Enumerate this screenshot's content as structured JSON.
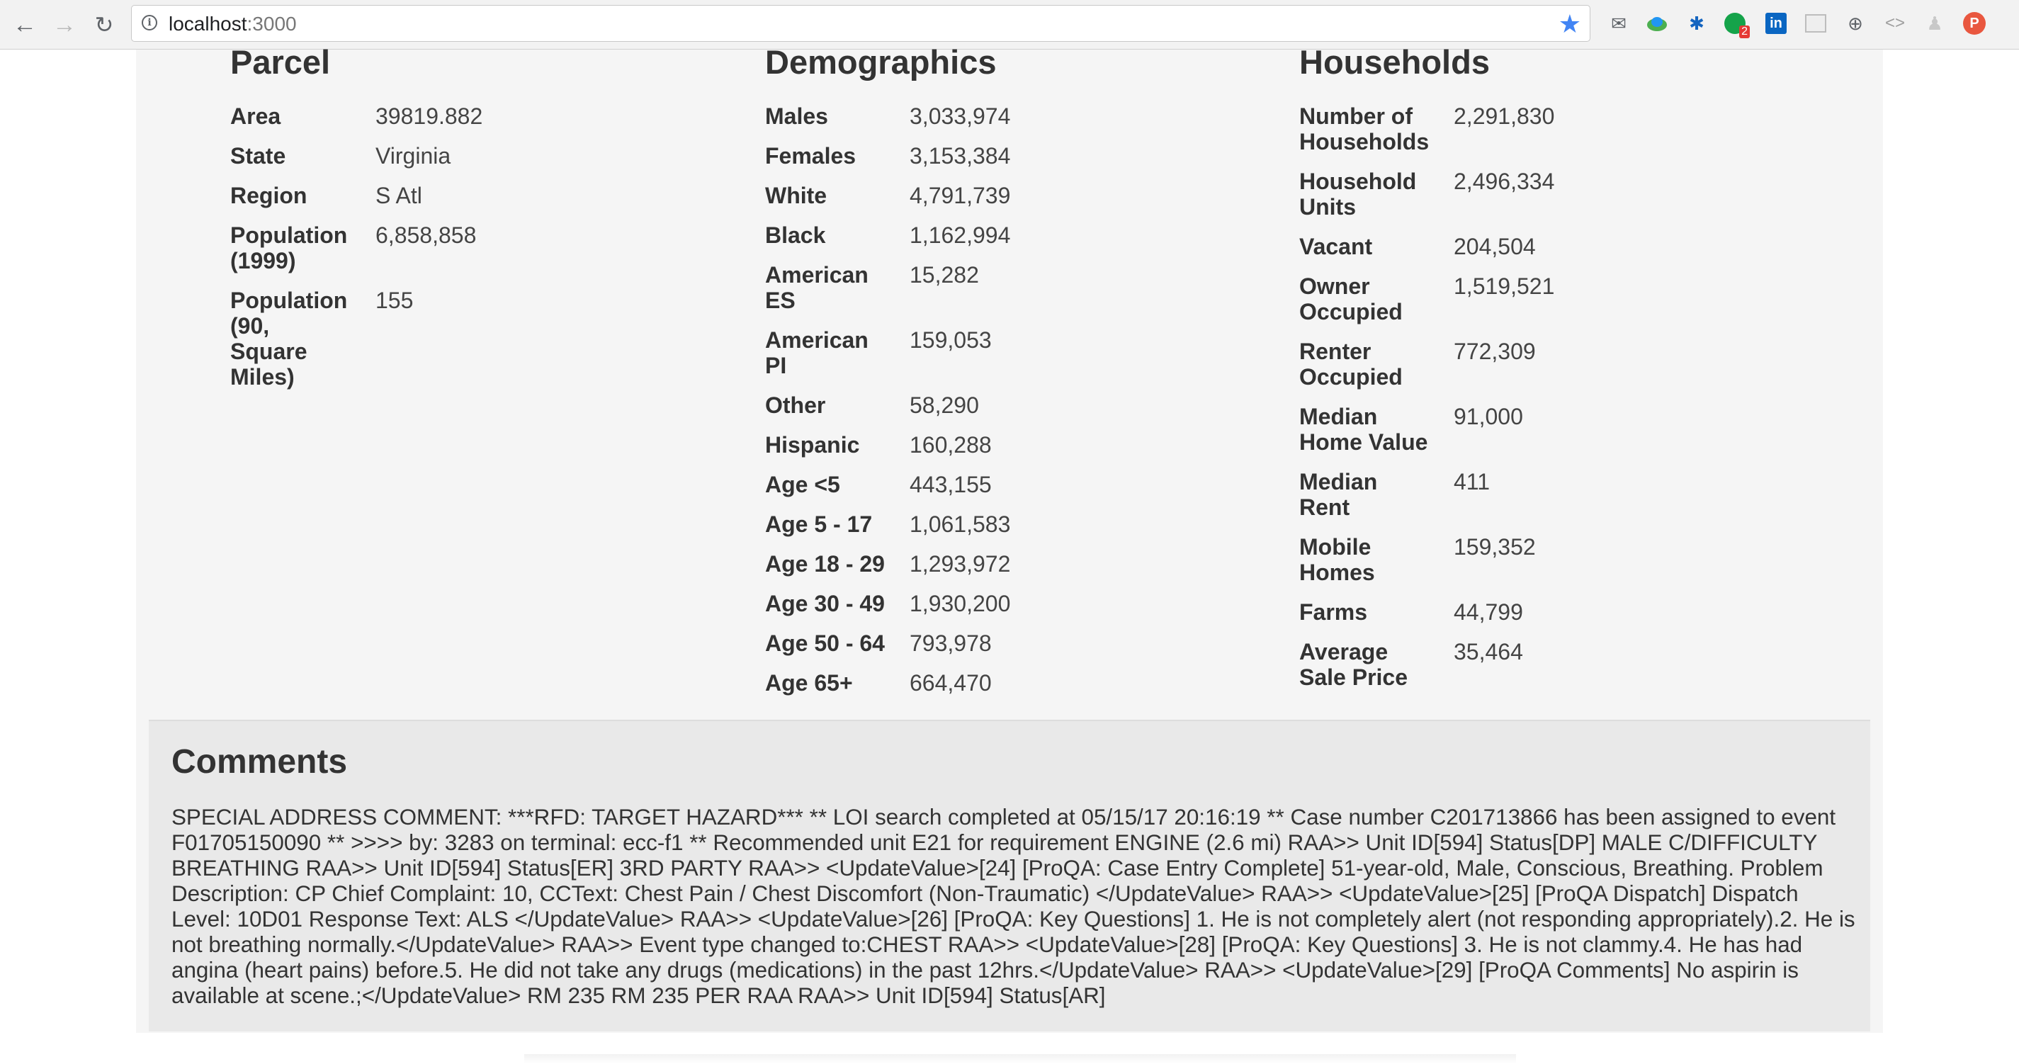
{
  "browser": {
    "url_host": "localhost",
    "url_port": ":3000",
    "extension_badge": "2",
    "profile_initial": "P"
  },
  "parcel": {
    "title": "Parcel",
    "rows": [
      {
        "label": "Area",
        "value": "39819.882"
      },
      {
        "label": "State",
        "value": "Virginia"
      },
      {
        "label": "Region",
        "value": "S Atl"
      },
      {
        "label": "Population (1999)",
        "value": "6,858,858"
      },
      {
        "label": "Population (90, Square Miles)",
        "value": "155"
      }
    ]
  },
  "demographics": {
    "title": "Demographics",
    "rows": [
      {
        "label": "Males",
        "value": "3,033,974"
      },
      {
        "label": "Females",
        "value": "3,153,384"
      },
      {
        "label": "White",
        "value": "4,791,739"
      },
      {
        "label": "Black",
        "value": "1,162,994"
      },
      {
        "label": "American ES",
        "value": "15,282"
      },
      {
        "label": "American PI",
        "value": "159,053"
      },
      {
        "label": "Other",
        "value": "58,290"
      },
      {
        "label": "Hispanic",
        "value": "160,288"
      },
      {
        "label": "Age <5",
        "value": "443,155"
      },
      {
        "label": "Age 5 - 17",
        "value": "1,061,583"
      },
      {
        "label": "Age 18 - 29",
        "value": "1,293,972"
      },
      {
        "label": "Age 30 - 49",
        "value": "1,930,200"
      },
      {
        "label": "Age 50 - 64",
        "value": "793,978"
      },
      {
        "label": "Age 65+",
        "value": "664,470"
      }
    ]
  },
  "households": {
    "title": "Households",
    "rows": [
      {
        "label": "Number of Households",
        "value": "2,291,830"
      },
      {
        "label": "Household Units",
        "value": "2,496,334"
      },
      {
        "label": "Vacant",
        "value": "204,504"
      },
      {
        "label": "Owner Occupied",
        "value": "1,519,521"
      },
      {
        "label": "Renter Occupied",
        "value": "772,309"
      },
      {
        "label": "Median Home Value",
        "value": "91,000"
      },
      {
        "label": "Median Rent",
        "value": "411"
      },
      {
        "label": "Mobile Homes",
        "value": "159,352"
      },
      {
        "label": "Farms",
        "value": "44,799"
      },
      {
        "label": "Average Sale Price",
        "value": "35,464"
      }
    ]
  },
  "comments": {
    "title": "Comments",
    "text": "SPECIAL ADDRESS COMMENT: ***RFD: TARGET HAZARD*** ** LOI search completed at 05/15/17 20:16:19 ** Case number C201713866 has been assigned to event F01705150090 ** >>>> by: 3283 on terminal: ecc-f1 ** Recommended unit E21 for requirement ENGINE (2.6 mi) RAA>> Unit ID[594] Status[DP] MALE C/DIFFICULTY BREATHING RAA>> Unit ID[594] Status[ER] 3RD PARTY RAA>> <UpdateValue>[24] [ProQA: Case Entry Complete] 51-year-old, Male, Conscious, Breathing. Problem Description: CP Chief Complaint: 10, CCText: Chest Pain / Chest Discomfort (Non-Traumatic) </UpdateValue> RAA>> <UpdateValue>[25] [ProQA Dispatch] Dispatch Level: 10D01 Response Text: ALS </UpdateValue> RAA>> <UpdateValue>[26] [ProQA: Key Questions] 1. He is not completely alert (not responding appropriately).2. He is not breathing normally.</UpdateValue> RAA>> Event type changed to:CHEST RAA>> <UpdateValue>[28] [ProQA: Key Questions] 3. He is not clammy.4. He has had angina (heart pains) before.5. He did not take any drugs (medications) in the past 12hrs.</UpdateValue> RAA>> <UpdateValue>[29] [ProQA Comments] No aspirin is available at scene.;</UpdateValue> RM 235 RM 235 PER RAA RAA>> Unit ID[594] Status[AR]"
  }
}
